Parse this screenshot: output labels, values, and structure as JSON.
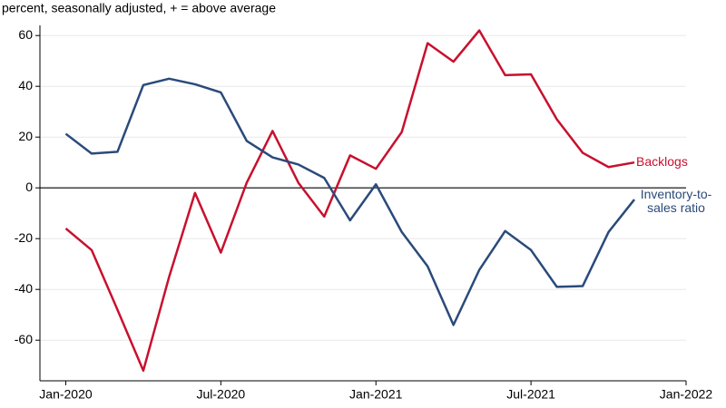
{
  "chart_data": {
    "type": "line",
    "y_label": "percent, seasonally adjusted, + = above average",
    "x": [
      "2020-01",
      "2020-02",
      "2020-03",
      "2020-04",
      "2020-05",
      "2020-06",
      "2020-07",
      "2020-08",
      "2020-09",
      "2020-10",
      "2020-11",
      "2020-12",
      "2021-01",
      "2021-02",
      "2021-03",
      "2021-04",
      "2021-05",
      "2021-06",
      "2021-07",
      "2021-08",
      "2021-09",
      "2021-10",
      "2021-11"
    ],
    "series": [
      {
        "name": "Backlogs",
        "color": "#c8102e",
        "values": [
          -16,
          -24.5,
          -48,
          -72,
          -35,
          -2,
          -25.5,
          2,
          22.4,
          2,
          -11.3,
          12.8,
          7.5,
          22,
          57,
          49.7,
          62,
          44.4,
          44.7,
          27,
          13.8,
          8.2,
          10
        ]
      },
      {
        "name": "Inventory-to-sales ratio",
        "color": "#2a4a7a",
        "values": [
          21.3,
          13.5,
          14.2,
          40.5,
          43,
          40.8,
          37.6,
          18.5,
          12,
          9.2,
          3.9,
          -12.8,
          1.4,
          -17.4,
          -30.9,
          -54,
          -32.3,
          -17,
          -24.5,
          -39,
          -38.7,
          -17.4,
          -4.6
        ]
      }
    ],
    "xlim": [
      "2019-12",
      "2022-01"
    ],
    "xticks": [
      {
        "value": "2020-01",
        "label": "Jan-2020"
      },
      {
        "value": "2020-07",
        "label": "Jul-2020"
      },
      {
        "value": "2021-01",
        "label": "Jan-2021"
      },
      {
        "value": "2021-07",
        "label": "Jul-2021"
      },
      {
        "value": "2022-01",
        "label": "Jan-2022"
      }
    ],
    "ylim": [
      -76,
      64
    ],
    "yticks": [
      -60,
      -40,
      -20,
      0,
      20,
      40,
      60
    ],
    "grid": true
  }
}
